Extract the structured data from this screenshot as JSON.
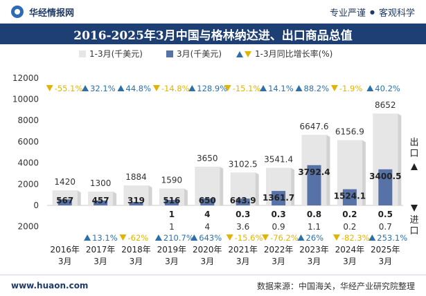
{
  "header": {
    "brand": "华经情报网",
    "slogan_left": "专业严谨",
    "slogan_sep": "●",
    "slogan_right": "客观科学"
  },
  "title": "2016-2025年3月中国与格林纳达进、出口商品总值",
  "legend": {
    "total": "1-3月(千美元)",
    "march": "3月(千美元)",
    "yoy": "1-3月同比增长率(%)"
  },
  "side_labels": {
    "export": "出口",
    "import": "进口"
  },
  "footer": {
    "url": "www.huaon.com",
    "source": "数据来源：中国海关，华经产业研究院整理"
  },
  "colors": {
    "total_bar": "#e6e6e6",
    "march_bar": "#5672a6",
    "up": "#2e6fa7",
    "down": "#e0b400",
    "title_band": "#1e3f73"
  },
  "chart_data": {
    "type": "bar",
    "categories": [
      "2016年\n3月",
      "2017年\n3月",
      "2018年\n3月",
      "2019年\n3月",
      "2020年\n3月",
      "2021年\n3月",
      "2022年\n3月",
      "2023年\n3月",
      "2024年\n3月",
      "2025年\n3月"
    ],
    "ylim": [
      -2000,
      12000
    ],
    "yticks": [
      -2000,
      0,
      2000,
      4000,
      6000,
      8000,
      10000,
      12000
    ],
    "ytick_labels": [
      "2000",
      "0",
      "2000",
      "4000",
      "6000",
      "8000",
      "10000",
      "12000"
    ],
    "export": {
      "total": [
        1420,
        1300,
        1884,
        1590,
        3650,
        3102.5,
        3541.4,
        6647.6,
        6156.9,
        8652
      ],
      "total_labels": [
        "1420",
        "1300",
        "1884",
        "1590",
        "3650",
        "3102.5",
        "3541.4",
        "6647.6",
        "6156.9",
        "8652"
      ],
      "march": [
        567,
        457,
        319,
        516,
        650,
        643.9,
        1361.7,
        3792.4,
        1524.1,
        3400.5
      ],
      "march_labels": [
        "567",
        "457",
        "319",
        "516",
        "650",
        "643.9",
        "1361.7",
        "3792.4",
        "1524.1",
        "3400.5"
      ],
      "yoy": [
        -55.1,
        32.1,
        44.8,
        -14.8,
        128.9,
        -15.1,
        14.1,
        88.2,
        -1.9,
        40.2
      ],
      "yoy_labels": [
        "-55.1%",
        "32.1%",
        "44.8%",
        "-14.8%",
        "128.9%",
        "-15.1%",
        "14.1%",
        "88.2%",
        "-1.9%",
        "40.2%"
      ]
    },
    "import": {
      "total": [
        null,
        null,
        null,
        1,
        4,
        3.6,
        0.9,
        1.1,
        0.2,
        0.7
      ],
      "total_labels": [
        "",
        "",
        "",
        "1",
        "4",
        "3.6",
        "0.9",
        "1.1",
        "0.2",
        "0.7"
      ],
      "march": [
        null,
        null,
        null,
        1,
        4,
        0.3,
        0.3,
        0.8,
        0.2,
        0.5
      ],
      "march_labels": [
        "",
        "",
        "",
        "1",
        "4",
        "0.3",
        "0.3",
        "0.8",
        "0.2",
        "0.5"
      ],
      "yoy": [
        null,
        13.1,
        -62,
        210.7,
        643,
        -15.6,
        -76.2,
        26,
        -82.3,
        253.1
      ],
      "yoy_labels": [
        "",
        "13.1%",
        "-62%",
        "210.7%",
        "643%",
        "-15.6%",
        "-76.2%",
        "26%",
        "-82.3%",
        "253.1%"
      ]
    }
  }
}
